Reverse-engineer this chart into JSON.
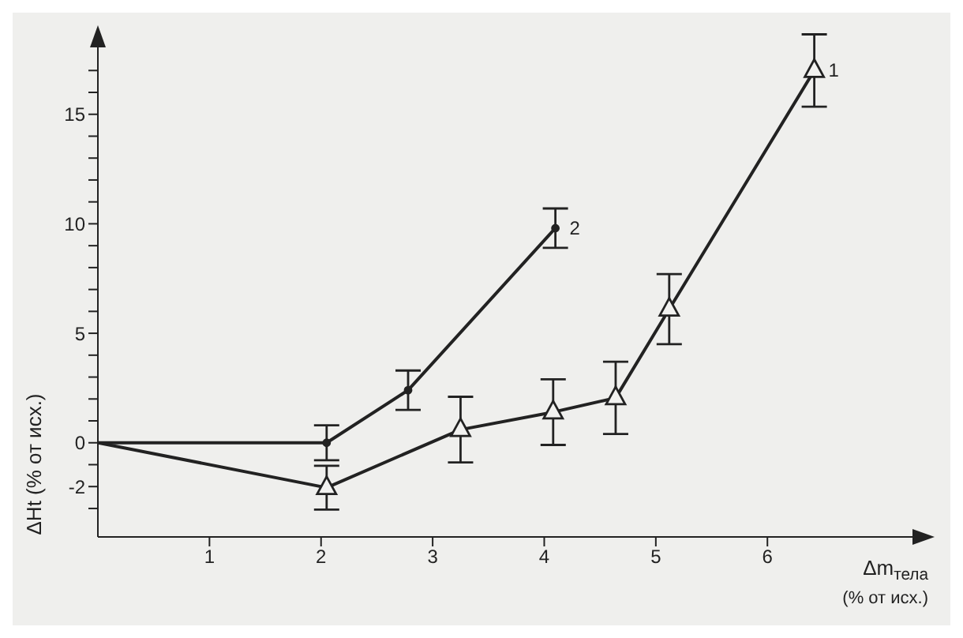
{
  "chart_data": {
    "type": "line",
    "xlabel": "Δm$_{тела}$ (% от исх.)",
    "ylabel": "ΔHt (% от исх.)",
    "xlim": [
      0,
      7.3
    ],
    "ylim": [
      -4.3,
      18.2
    ],
    "xticks": [
      1,
      2,
      3,
      4,
      5,
      6
    ],
    "yticks": [
      {
        "value": -3,
        "label": null
      },
      -2,
      {
        "value": -1,
        "label": null
      },
      0,
      {
        "value": 1,
        "label": null
      },
      {
        "value": 2,
        "label": null
      },
      {
        "value": 3,
        "label": null
      },
      {
        "value": 4,
        "label": null
      },
      5,
      {
        "value": 6,
        "label": null
      },
      {
        "value": 7,
        "label": null
      },
      {
        "value": 8,
        "label": null
      },
      {
        "value": 9,
        "label": null
      },
      10,
      {
        "value": 11,
        "label": null
      },
      {
        "value": 12,
        "label": null
      },
      {
        "value": 13,
        "label": null
      },
      {
        "value": 14,
        "label": null
      },
      15,
      {
        "value": 16,
        "label": null
      },
      {
        "value": 17,
        "label": null
      }
    ],
    "grid": false,
    "legend": false,
    "line_style": "solid",
    "series": [
      {
        "name": "1",
        "color": "#222222",
        "marker": "triangle",
        "x": [
          0,
          2.05,
          3.25,
          4.08,
          4.64,
          5.12,
          6.42
        ],
        "values": [
          0,
          -2.05,
          0.6,
          1.4,
          2.05,
          6.1,
          17.0
        ],
        "errors": [
          null,
          1.0,
          1.5,
          1.5,
          1.65,
          1.6,
          1.65
        ]
      },
      {
        "name": "2",
        "color": "#222222",
        "marker": "circle",
        "x": [
          0,
          2.05,
          2.78,
          4.1
        ],
        "values": [
          0,
          0,
          2.4,
          9.8
        ],
        "errors": [
          null,
          0.8,
          0.9,
          0.9
        ]
      }
    ]
  }
}
